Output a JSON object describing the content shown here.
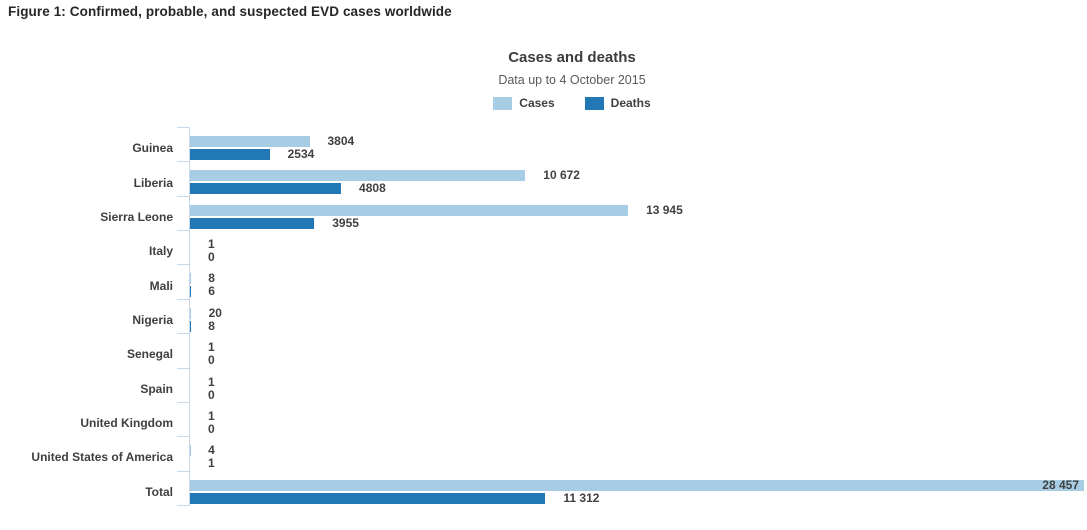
{
  "figure_title": "Figure 1: Confirmed, probable, and suspected EVD cases worldwide",
  "chart_data": {
    "type": "bar",
    "orientation": "horizontal",
    "title": "Cases and deaths",
    "subtitle": "Data up to 4 October 2015",
    "legend_position": "top",
    "grid": false,
    "xlim": [
      0,
      28457
    ],
    "axis_color": "#c6d8e9",
    "legend": [
      {
        "name": "Cases",
        "color": "#a6cde3"
      },
      {
        "name": "Deaths",
        "color": "#2178b5"
      }
    ],
    "categories": [
      "Guinea",
      "Liberia",
      "Sierra Leone",
      "Italy",
      "Mali",
      "Nigeria",
      "Senegal",
      "Spain",
      "United Kingdom",
      "United States of America",
      "Total"
    ],
    "series": [
      {
        "name": "Cases",
        "color": "#a6cde3",
        "values": [
          3804,
          10672,
          13945,
          1,
          8,
          20,
          1,
          1,
          1,
          4,
          28457
        ],
        "labels": [
          "3804",
          "10 672",
          "13 945",
          "1",
          "8",
          "20",
          "1",
          "1",
          "1",
          "4",
          "28 457"
        ]
      },
      {
        "name": "Deaths",
        "color": "#2178b5",
        "values": [
          2534,
          4808,
          3955,
          0,
          6,
          8,
          0,
          0,
          0,
          1,
          11312
        ],
        "labels": [
          "2534",
          "4808",
          "3955",
          "0",
          "6",
          "8",
          "0",
          "0",
          "0",
          "1",
          "11 312"
        ]
      }
    ]
  }
}
